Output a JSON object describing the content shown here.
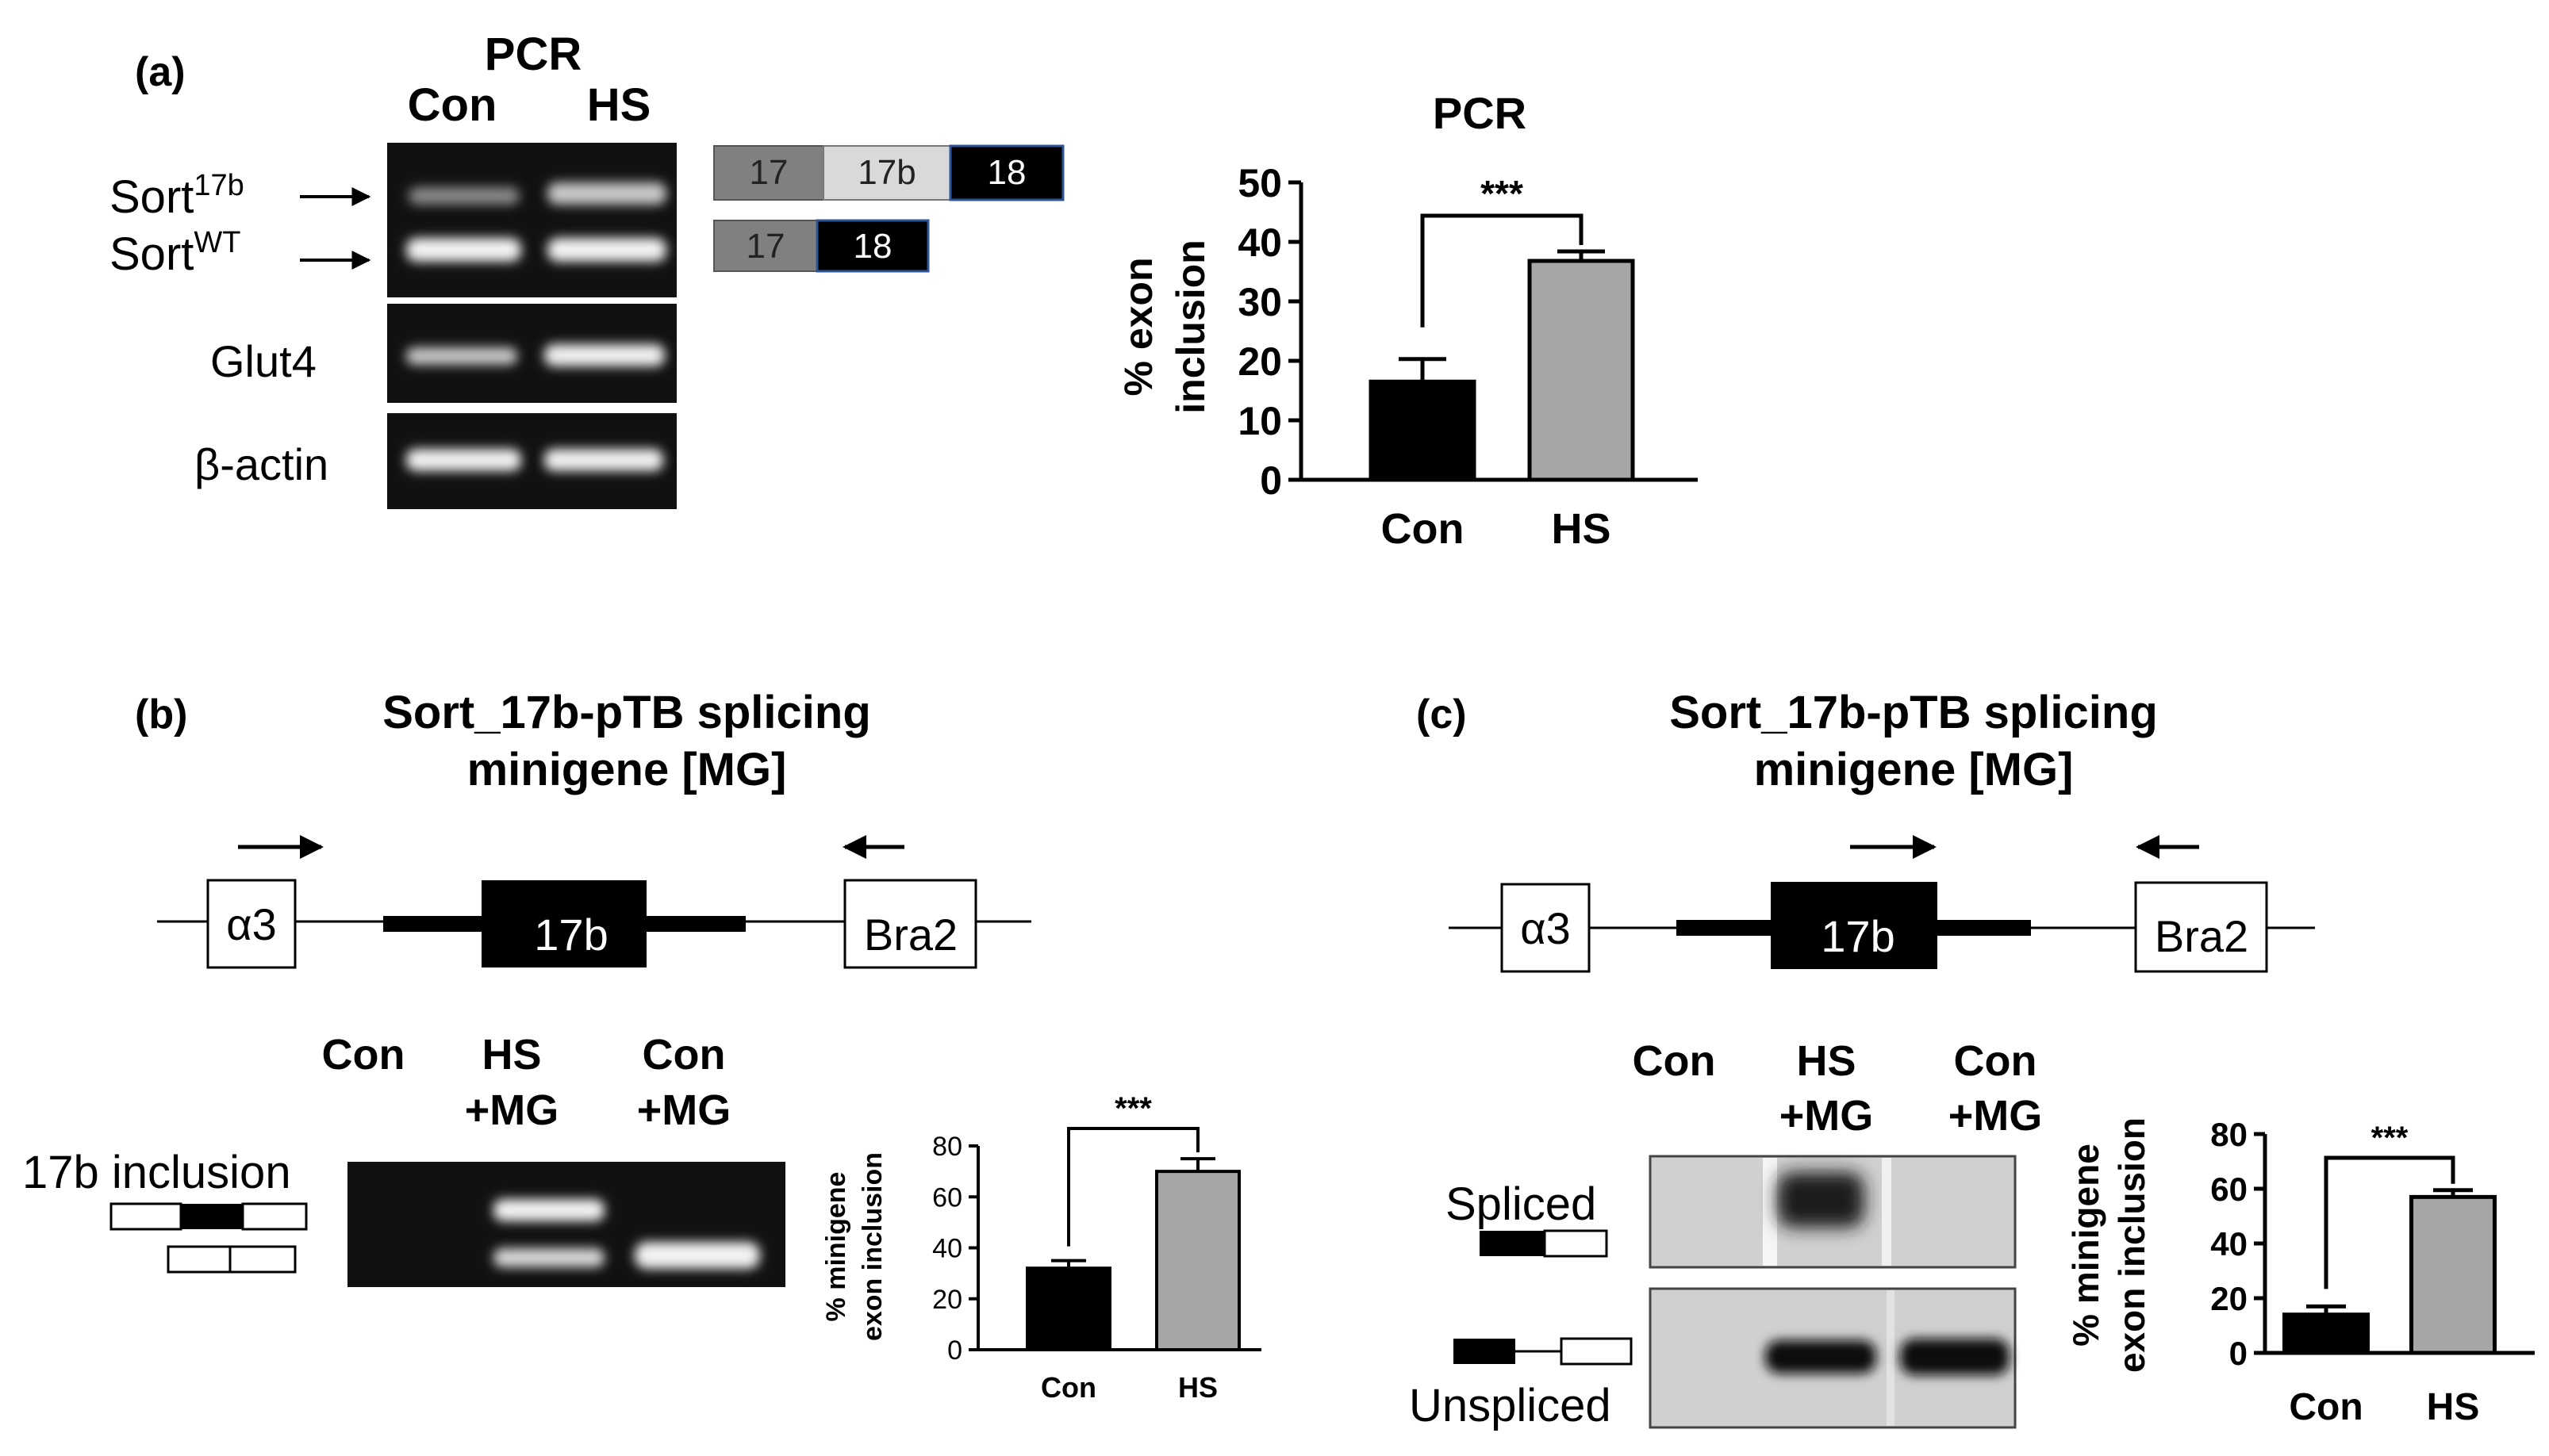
{
  "panel_a": {
    "label": "(a)",
    "gel_title": "PCR",
    "lanes": [
      "Con",
      "HS"
    ],
    "band_labels": {
      "sort17b_base": "Sort",
      "sort17b_sup": "17b",
      "sortwt_base": "Sort",
      "sortwt_sup": "WT",
      "glut4": "Glut4",
      "actin": "β-actin"
    },
    "exons_long": [
      "17",
      "17b",
      "18"
    ],
    "exons_short": [
      "17",
      "18"
    ]
  },
  "panel_b": {
    "label": "(b)",
    "title_line1": "Sort_17b-pTB splicing",
    "title_line2": "minigene [MG]",
    "construct": {
      "left": "α3",
      "center": "17b",
      "right": "Bra2"
    },
    "lanes": [
      "Con",
      "HS",
      "+MG",
      "Con",
      "+MG"
    ],
    "row_label": "17b inclusion"
  },
  "panel_c": {
    "label": "(c)",
    "title_line1": "Sort_17b-pTB splicing",
    "title_line2": "minigene [MG]",
    "construct": {
      "left": "α3",
      "center": "17b",
      "right": "Bra2"
    },
    "lanes": [
      "Con",
      "HS",
      "+MG",
      "Con",
      "+MG"
    ],
    "spliced_label": "Spliced",
    "unspliced_label": "Unspliced"
  },
  "chart_data": [
    {
      "type": "bar",
      "title": "PCR",
      "categories": [
        "Con",
        "HS"
      ],
      "values": [
        16.5,
        36.8
      ],
      "errors": [
        3.8,
        1.6
      ],
      "colors": [
        "#000000",
        "#a6a6a6"
      ],
      "ylabel": "% exon inclusion",
      "ylabel_lines": [
        "% exon",
        "inclusion"
      ],
      "ylim": [
        0,
        50
      ],
      "yticks": [
        0,
        10,
        20,
        30,
        40,
        50
      ],
      "significance": "***"
    },
    {
      "type": "bar",
      "title": "",
      "categories": [
        "Con",
        "HS"
      ],
      "values": [
        32,
        70
      ],
      "errors": [
        3,
        5
      ],
      "colors": [
        "#000000",
        "#a6a6a6"
      ],
      "ylabel": "% minigene exon inclusion",
      "ylabel_lines": [
        "% minigene",
        "exon inclusion"
      ],
      "ylim": [
        0,
        80
      ],
      "yticks": [
        0,
        20,
        40,
        60,
        80
      ],
      "significance": "***"
    },
    {
      "type": "bar",
      "title": "",
      "categories": [
        "Con",
        "HS"
      ],
      "values": [
        14,
        57
      ],
      "errors": [
        3,
        2.5
      ],
      "colors": [
        "#000000",
        "#a6a6a6"
      ],
      "ylabel": "% minigene exon inclusion",
      "ylabel_lines": [
        "% minigene",
        "exon inclusion"
      ],
      "ylim": [
        0,
        80
      ],
      "yticks": [
        0,
        20,
        40,
        60,
        80
      ],
      "significance": "***"
    }
  ]
}
